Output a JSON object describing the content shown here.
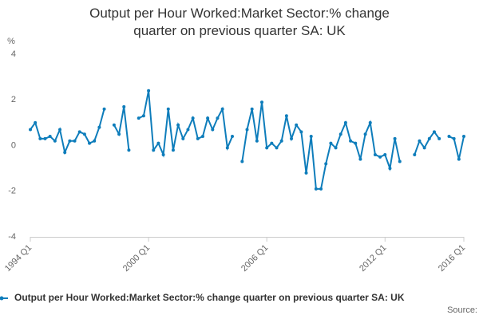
{
  "chart_data": {
    "type": "line",
    "title": "Output per Hour Worked:Market Sector:% change quarter on previous quarter SA: UK",
    "y_label": "%",
    "source": "Source:",
    "categories": [
      "1994 Q1",
      null,
      null,
      null,
      null,
      null,
      null,
      null,
      null,
      null,
      null,
      null,
      null,
      null,
      null,
      null,
      null,
      null,
      null,
      null,
      null,
      null,
      null,
      null,
      "2000 Q1",
      null,
      null,
      null,
      null,
      null,
      null,
      null,
      null,
      null,
      null,
      null,
      null,
      null,
      null,
      null,
      null,
      null,
      null,
      null,
      null,
      null,
      null,
      null,
      "2006 Q1",
      null,
      null,
      null,
      null,
      null,
      null,
      null,
      null,
      null,
      null,
      null,
      null,
      null,
      null,
      null,
      null,
      null,
      null,
      null,
      null,
      null,
      null,
      null,
      "2012 Q1",
      null,
      null,
      null,
      null,
      null,
      null,
      null,
      null,
      null,
      null,
      null,
      null,
      null,
      null,
      null,
      "2016 Q1"
    ],
    "series": [
      {
        "name": "Output per Hour Worked:Market Sector:% change quarter on previous quarter SA: UK",
        "color": "#0e7dbb",
        "values": [
          0.7,
          1.0,
          0.3,
          0.3,
          0.4,
          0.2,
          0.7,
          -0.3,
          0.2,
          0.2,
          0.6,
          0.5,
          0.1,
          0.2,
          0.8,
          1.6,
          null,
          0.9,
          0.5,
          1.7,
          -0.2,
          null,
          1.2,
          1.3,
          2.4,
          -0.2,
          0.1,
          -0.4,
          1.6,
          -0.2,
          0.9,
          0.3,
          0.7,
          1.2,
          0.3,
          0.4,
          1.2,
          0.7,
          1.2,
          1.6,
          -0.1,
          0.4,
          null,
          -0.7,
          0.7,
          1.6,
          0.2,
          1.9,
          -0.1,
          0.1,
          -0.1,
          0.2,
          1.3,
          0.3,
          0.9,
          0.6,
          -1.2,
          0.4,
          -1.9,
          -1.9,
          -0.8,
          0.1,
          -0.1,
          0.5,
          1.0,
          0.2,
          0.1,
          -0.6,
          0.5,
          1.0,
          -0.4,
          -0.5,
          -0.4,
          -1.0,
          0.3,
          -0.7,
          null,
          null,
          -0.4,
          0.2,
          -0.1,
          0.3,
          0.6,
          0.3,
          null,
          0.4,
          0.3,
          -0.6,
          0.4
        ]
      }
    ],
    "ylim": [
      -4,
      4
    ],
    "yticks": [
      -4,
      -2,
      0,
      2,
      4
    ],
    "grid": false
  }
}
